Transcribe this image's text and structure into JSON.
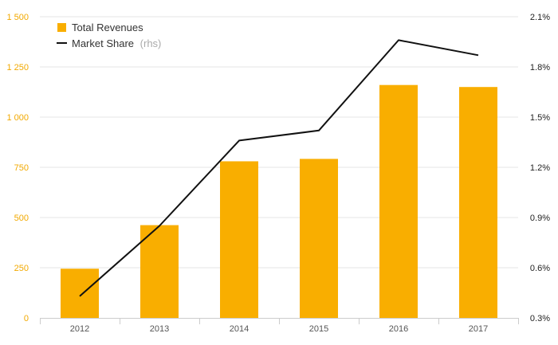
{
  "chart_data": {
    "type": "bar",
    "categories": [
      "2012",
      "2013",
      "2014",
      "2015",
      "2016",
      "2017"
    ],
    "series": [
      {
        "name": "Total Revenues",
        "type": "bar",
        "axis": "left",
        "color": "#f9ae00",
        "values": [
          245,
          462,
          780,
          792,
          1160,
          1150
        ]
      },
      {
        "name": "Market Share",
        "legend_suffix": "(rhs)",
        "type": "line",
        "axis": "right",
        "color": "#111111",
        "values": [
          0.43,
          0.85,
          1.36,
          1.42,
          1.96,
          1.87
        ]
      }
    ],
    "y_left": {
      "min": 0,
      "max": 1500,
      "ticks": [
        0,
        250,
        500,
        750,
        1000,
        1250,
        1500
      ],
      "tick_labels": [
        "0",
        "250",
        "500",
        "750",
        "1 000",
        "1 250",
        "1 500"
      ],
      "color": "#f2a900"
    },
    "y_right": {
      "min": 0.3,
      "max": 2.1,
      "ticks": [
        0.3,
        0.6,
        0.9,
        1.2,
        1.5,
        1.8,
        2.1
      ],
      "tick_labels": [
        "0.3%",
        "0.6%",
        "0.9%",
        "1.2%",
        "1.5%",
        "1.8%",
        "2.1%"
      ],
      "color": "#222222"
    },
    "legend_position": "top-left",
    "grid": true,
    "title": "",
    "xlabel": "",
    "ylabel": ""
  }
}
